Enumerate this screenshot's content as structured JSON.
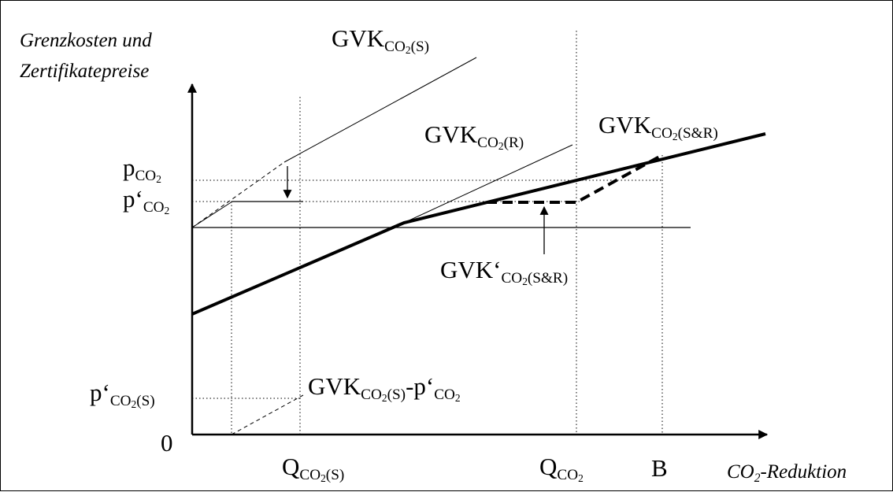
{
  "y_axis_label": {
    "line1": "Grenzkosten und",
    "line2": "Zertifikatepreise"
  },
  "x_axis_label": {
    "main": "CO",
    "sub": "2",
    "suffix": "-Reduktion"
  },
  "origin": "0",
  "curves": {
    "gvk_s": {
      "main": "GVK",
      "sub_pre": "CO",
      "sub_2": "2",
      "sub_post": "(S)"
    },
    "gvk_r": {
      "main": "GVK",
      "sub_pre": "CO",
      "sub_2": "2",
      "sub_post": "(R)"
    },
    "gvk_sr": {
      "main": "GVK",
      "sub_pre": "CO",
      "sub_2": "2",
      "sub_post": "(S&R)"
    },
    "gvk_sr_prime": {
      "main": "GVK‘",
      "sub_pre": "CO",
      "sub_2": "2",
      "sub_post": "(S&R)"
    },
    "gvk_s_minus": {
      "main": "GVK",
      "sub_pre": "CO",
      "sub_2": "2",
      "sub_post": "(S)",
      "minus": "-p‘",
      "sub2_pre": "CO",
      "sub2_2": "2"
    }
  },
  "y_labels": {
    "p_co2": {
      "main": "p",
      "sub_pre": "CO",
      "sub_2": "2"
    },
    "p_prime_co2": {
      "main": "p‘",
      "sub_pre": "CO",
      "sub_2": "2"
    },
    "p_prime_co2_s": {
      "main": "p‘",
      "sub_pre": "CO",
      "sub_2": "2",
      "sub_post": "(S)"
    }
  },
  "x_labels": {
    "q_co2_s": {
      "main": "Q",
      "sub_pre": "CO",
      "sub_2": "2",
      "sub_post": "(S)"
    },
    "q_co2": {
      "main": "Q",
      "sub_pre": "CO",
      "sub_2": "2"
    },
    "b": "B"
  }
}
